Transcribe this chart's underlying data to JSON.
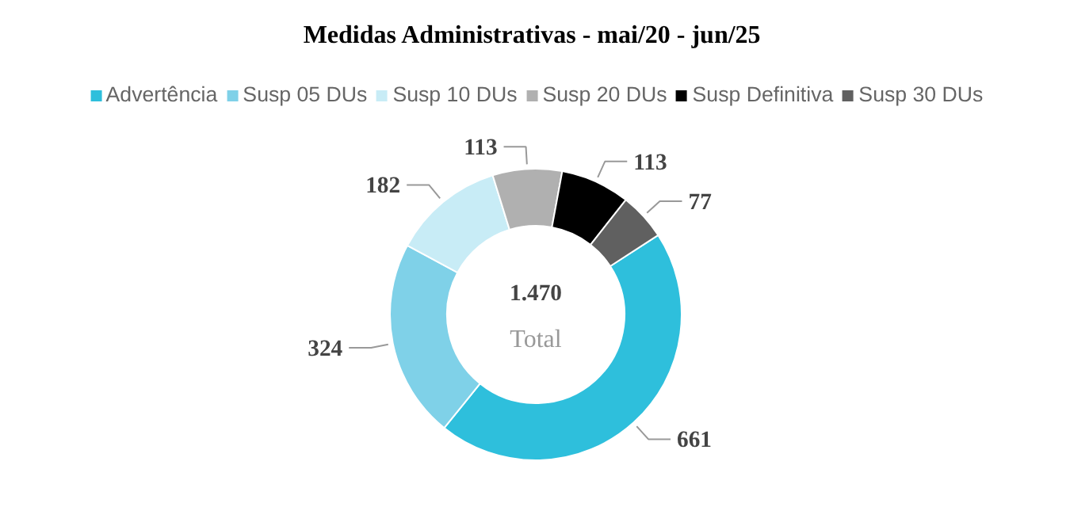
{
  "chart_data": {
    "type": "donut",
    "title": "Medidas Administrativas - mai/20 -  jun/25",
    "categories": [
      "Advertência",
      "Susp 05 DUs",
      "Susp 10 DUs",
      "Susp 20 DUs",
      "Susp Definitiva",
      "Susp 30 DUs"
    ],
    "values": [
      661,
      324,
      182,
      113,
      113,
      77
    ],
    "colors": [
      "#2ebfdc",
      "#7fd1e8",
      "#c8ecf6",
      "#b0b0b0",
      "#000000",
      "#606060"
    ],
    "data_labels": true,
    "legend": "top",
    "annotations": [
      "1.470",
      "Total"
    ]
  }
}
